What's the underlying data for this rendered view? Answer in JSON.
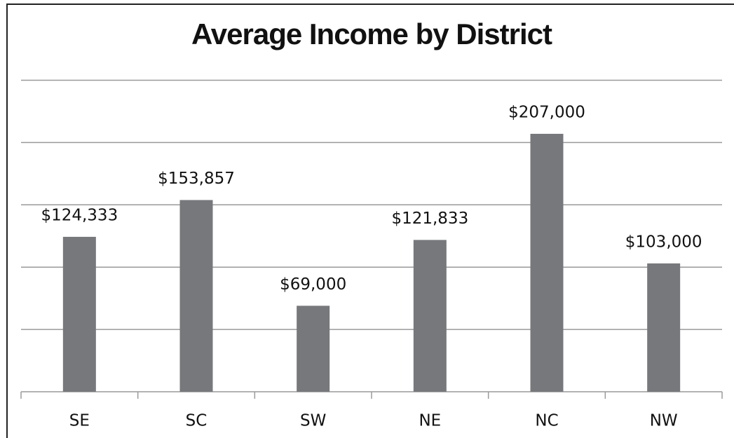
{
  "chart_data": {
    "type": "bar",
    "title": "Average Income by District",
    "categories": [
      "SE",
      "SC",
      "SW",
      "NE",
      "NC",
      "NW"
    ],
    "values": [
      124333,
      153857,
      69000,
      121833,
      207000,
      103000
    ],
    "value_labels": [
      "$124,333",
      "$153,857",
      "$69,000",
      "$121,833",
      "$207,000",
      "$103,000"
    ],
    "color": "#77787b",
    "ylim": [
      0,
      250000
    ],
    "yticks": [
      0,
      50000,
      100000,
      150000,
      200000,
      250000
    ],
    "grid": true
  }
}
